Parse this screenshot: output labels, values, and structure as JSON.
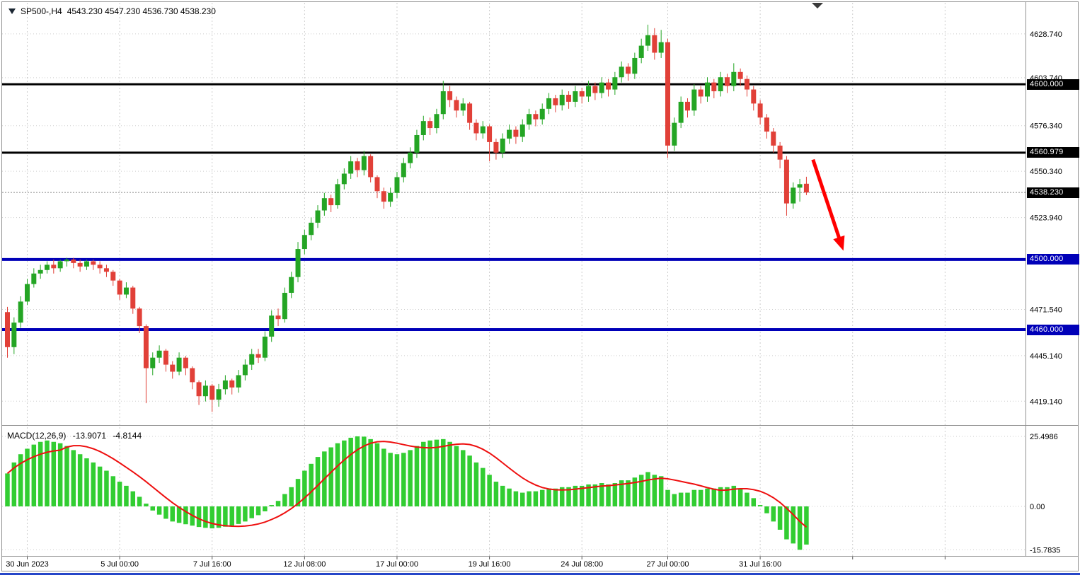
{
  "window": {
    "symbol_timeframe": "SP500-,H4",
    "ohlc_text": "4543.230 4547.230 4536.730 4538.230"
  },
  "macd_panel": {
    "label": "MACD(12,26,9)",
    "macd_value": "-13.9071",
    "signal_value": "-4.8144"
  },
  "chart_data": {
    "type": "candlestick",
    "symbol": "SP500",
    "timeframe": "H4",
    "price_axis": {
      "visible_ticks": [
        "4628.740",
        "4603.740",
        "4576.340",
        "4550.340",
        "4523.940",
        "4471.540",
        "4445.140",
        "4419.140"
      ]
    },
    "levels": [
      {
        "label": "4600.000",
        "price": 4600.0,
        "color": "#000000",
        "width": 3
      },
      {
        "label": "4560.979",
        "price": 4560.979,
        "color": "#000000",
        "width": 3
      },
      {
        "label": "4500.000",
        "price": 4500.0,
        "color": "#0000B8",
        "width": 4
      },
      {
        "label": "4460.000",
        "price": 4460.0,
        "color": "#0000B8",
        "width": 4
      }
    ],
    "current_price": {
      "label": "4538.230",
      "price": 4538.23,
      "tag_color": "#000000"
    },
    "time_axis": {
      "labels": [
        "30 Jun 2023",
        "5 Jul 00:00",
        "7 Jul 16:00",
        "12 Jul 08:00",
        "17 Jul 00:00",
        "19 Jul 16:00",
        "24 Jul 08:00",
        "27 Jul 00:00",
        "31 Jul 16:00"
      ],
      "label_bars": [
        3,
        17,
        31,
        45,
        59,
        73,
        87,
        100,
        114
      ],
      "grid_bars": [
        3,
        17,
        31,
        45,
        59,
        73,
        87,
        100,
        114,
        128,
        142
      ]
    },
    "colors": {
      "bull": "#24A524",
      "bear": "#E14038",
      "grid": "#CDCDCD",
      "macd_bar": "#32CD32",
      "macd_signal": "#EE0F0F",
      "arrow": "#FF0000"
    },
    "candles": [
      [
        4470,
        4473,
        4444,
        4450
      ],
      [
        4450,
        4467,
        4446,
        4464
      ],
      [
        4464,
        4479,
        4461,
        4476
      ],
      [
        4476,
        4489,
        4474,
        4486
      ],
      [
        4486,
        4495,
        4484,
        4492
      ],
      [
        4492,
        4497,
        4489,
        4494
      ],
      [
        4494,
        4499,
        4492,
        4497
      ],
      [
        4497,
        4500,
        4492,
        4495
      ],
      [
        4495,
        4500,
        4493,
        4499
      ],
      [
        4499,
        4501,
        4496,
        4500
      ],
      [
        4500,
        4501,
        4495,
        4498
      ],
      [
        4498,
        4500,
        4493,
        4496
      ],
      [
        4496,
        4500,
        4494,
        4499
      ],
      [
        4499,
        4500,
        4494,
        4497
      ],
      [
        4497,
        4499,
        4492,
        4495
      ],
      [
        4495,
        4497,
        4490,
        4493
      ],
      [
        4493,
        4494,
        4485,
        4488
      ],
      [
        4488,
        4489,
        4477,
        4480
      ],
      [
        4480,
        4487,
        4478,
        4484
      ],
      [
        4484,
        4485,
        4469,
        4472
      ],
      [
        4472,
        4473,
        4458,
        4462
      ],
      [
        4462,
        4463,
        4418,
        4438
      ],
      [
        4438,
        4447,
        4434,
        4444
      ],
      [
        4444,
        4451,
        4441,
        4448
      ],
      [
        4448,
        4449,
        4436,
        4440
      ],
      [
        4440,
        4442,
        4432,
        4436
      ],
      [
        4436,
        4447,
        4434,
        4444
      ],
      [
        4444,
        4445,
        4434,
        4438
      ],
      [
        4438,
        4439,
        4426,
        4430
      ],
      [
        4430,
        4431,
        4417,
        4422
      ],
      [
        4422,
        4431,
        4419,
        4428
      ],
      [
        4428,
        4429,
        4413,
        4420
      ],
      [
        4420,
        4429,
        4416,
        4426
      ],
      [
        4426,
        4434,
        4423,
        4431
      ],
      [
        4431,
        4432,
        4423,
        4427
      ],
      [
        4427,
        4437,
        4424,
        4434
      ],
      [
        4434,
        4443,
        4431,
        4440
      ],
      [
        4440,
        4449,
        4437,
        4446
      ],
      [
        4446,
        4449,
        4441,
        4444
      ],
      [
        4444,
        4459,
        4442,
        4456
      ],
      [
        4456,
        4471,
        4453,
        4468
      ],
      [
        4468,
        4472,
        4462,
        4466
      ],
      [
        4466,
        4484,
        4464,
        4481
      ],
      [
        4481,
        4493,
        4478,
        4490
      ],
      [
        4490,
        4510,
        4487,
        4506
      ],
      [
        4506,
        4517,
        4503,
        4514
      ],
      [
        4514,
        4524,
        4511,
        4521
      ],
      [
        4521,
        4531,
        4518,
        4528
      ],
      [
        4528,
        4538,
        4525,
        4535
      ],
      [
        4535,
        4537,
        4527,
        4531
      ],
      [
        4531,
        4546,
        4529,
        4543
      ],
      [
        4543,
        4552,
        4540,
        4549
      ],
      [
        4549,
        4559,
        4546,
        4556
      ],
      [
        4556,
        4558,
        4547,
        4551
      ],
      [
        4551,
        4562,
        4548,
        4559
      ],
      [
        4559,
        4560,
        4544,
        4547
      ],
      [
        4547,
        4548,
        4535,
        4539
      ],
      [
        4539,
        4541,
        4529,
        4533
      ],
      [
        4533,
        4541,
        4530,
        4538
      ],
      [
        4538,
        4550,
        4535,
        4547
      ],
      [
        4547,
        4558,
        4544,
        4555
      ],
      [
        4555,
        4564,
        4552,
        4561
      ],
      [
        4561,
        4574,
        4558,
        4571
      ],
      [
        4571,
        4582,
        4568,
        4579
      ],
      [
        4579,
        4581,
        4571,
        4575
      ],
      [
        4575,
        4586,
        4572,
        4583
      ],
      [
        4583,
        4602,
        4580,
        4596
      ],
      [
        4596,
        4599,
        4587,
        4591
      ],
      [
        4591,
        4593,
        4581,
        4585
      ],
      [
        4585,
        4592,
        4582,
        4589
      ],
      [
        4589,
        4590,
        4574,
        4578
      ],
      [
        4578,
        4580,
        4568,
        4572
      ],
      [
        4572,
        4579,
        4569,
        4576
      ],
      [
        4576,
        4577,
        4556,
        4567
      ],
      [
        4567,
        4569,
        4557,
        4561
      ],
      [
        4561,
        4572,
        4558,
        4569
      ],
      [
        4569,
        4577,
        4566,
        4574
      ],
      [
        4574,
        4576,
        4566,
        4570
      ],
      [
        4570,
        4580,
        4567,
        4577
      ],
      [
        4577,
        4586,
        4574,
        4583
      ],
      [
        4583,
        4585,
        4576,
        4580
      ],
      [
        4580,
        4589,
        4577,
        4586
      ],
      [
        4586,
        4595,
        4583,
        4592
      ],
      [
        4592,
        4594,
        4584,
        4588
      ],
      [
        4588,
        4597,
        4585,
        4594
      ],
      [
        4594,
        4596,
        4586,
        4590
      ],
      [
        4590,
        4599,
        4587,
        4596
      ],
      [
        4596,
        4598,
        4589,
        4593
      ],
      [
        4593,
        4602,
        4590,
        4599
      ],
      [
        4599,
        4601,
        4591,
        4595
      ],
      [
        4595,
        4604,
        4592,
        4601
      ],
      [
        4601,
        4603,
        4593,
        4597
      ],
      [
        4597,
        4607,
        4594,
        4604
      ],
      [
        4604,
        4613,
        4601,
        4610
      ],
      [
        4610,
        4612,
        4602,
        4606
      ],
      [
        4606,
        4618,
        4603,
        4615
      ],
      [
        4615,
        4626,
        4612,
        4622
      ],
      [
        4622,
        4634,
        4619,
        4628
      ],
      [
        4628,
        4632,
        4614,
        4618
      ],
      [
        4618,
        4631,
        4615,
        4624
      ],
      [
        4624,
        4626,
        4558,
        4565
      ],
      [
        4565,
        4581,
        4562,
        4578
      ],
      [
        4578,
        4593,
        4575,
        4590
      ],
      [
        4590,
        4592,
        4581,
        4585
      ],
      [
        4585,
        4600,
        4582,
        4597
      ],
      [
        4597,
        4599,
        4589,
        4593
      ],
      [
        4593,
        4604,
        4590,
        4601
      ],
      [
        4601,
        4603,
        4592,
        4596
      ],
      [
        4596,
        4607,
        4593,
        4604
      ],
      [
        4604,
        4606,
        4595,
        4599
      ],
      [
        4599,
        4612,
        4596,
        4607
      ],
      [
        4607,
        4609,
        4599,
        4603
      ],
      [
        4603,
        4605,
        4593,
        4597
      ],
      [
        4597,
        4599,
        4585,
        4589
      ],
      [
        4589,
        4591,
        4577,
        4581
      ],
      [
        4581,
        4583,
        4569,
        4573
      ],
      [
        4573,
        4575,
        4561,
        4565
      ],
      [
        4565,
        4567,
        4552,
        4557
      ],
      [
        4557,
        4559,
        4525,
        4532
      ],
      [
        4532,
        4544,
        4529,
        4541
      ],
      [
        4541,
        4546,
        4533,
        4543
      ],
      [
        4543.23,
        4547.23,
        4536.73,
        4538.23
      ]
    ],
    "macd": {
      "values": [
        12,
        16,
        19,
        21,
        22.5,
        23.5,
        24,
        23.5,
        23,
        22,
        20.5,
        19,
        17.5,
        16,
        14.5,
        13,
        11,
        9,
        7.5,
        5.5,
        3.5,
        1,
        -1.5,
        -3,
        -4.5,
        -5.5,
        -6,
        -6.5,
        -7,
        -7.5,
        -7.8,
        -8,
        -7.8,
        -7.4,
        -7,
        -6.4,
        -5.5,
        -4.3,
        -3.2,
        -1.8,
        0.5,
        2,
        4.5,
        7,
        10,
        13,
        15.5,
        18,
        20,
        21.5,
        23,
        24,
        25,
        25.5,
        25.4,
        24.5,
        23,
        21,
        19.5,
        19,
        19.5,
        20.5,
        22,
        23.5,
        24,
        24.3,
        24.5,
        23.5,
        22,
        20.5,
        18.5,
        16,
        14,
        11.5,
        9,
        7.5,
        6.5,
        5.5,
        5,
        5.5,
        5.5,
        6,
        6.5,
        6.5,
        7,
        7,
        7.5,
        7.5,
        8,
        8,
        8.5,
        8,
        8.5,
        9.5,
        9.5,
        10.5,
        11.5,
        12.5,
        11.5,
        11,
        6,
        4.5,
        5,
        5,
        6,
        6,
        6.5,
        6.5,
        7,
        7,
        7.5,
        6.5,
        5,
        3,
        0.5,
        -2.5,
        -5.5,
        -8.5,
        -12,
        -13.5,
        -15.8,
        -13.9
      ],
      "scale_ticks": [
        "25.4986",
        "0.00",
        "-15.7835"
      ]
    },
    "annotation_arrow": {
      "from_bar": 122,
      "from_price": 4557,
      "to_bar": 126.6,
      "to_price": 4505
    }
  }
}
